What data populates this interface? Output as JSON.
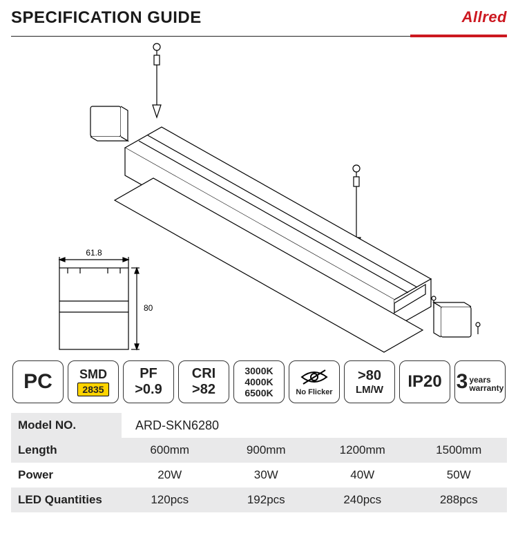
{
  "header": {
    "title": "SPECIFICATION GUIDE",
    "brand": "Allred",
    "brand_color": "#cc1820"
  },
  "diagram": {
    "profile": {
      "width_label": "61.8",
      "height_label": "80"
    }
  },
  "tiles": {
    "pc": "PC",
    "smd": {
      "top": "SMD",
      "chip": "2835"
    },
    "pf": {
      "l1": "PF",
      "l2": ">0.9"
    },
    "cri": {
      "l1": "CRI",
      "l2": ">82"
    },
    "cct": {
      "l1": "3000K",
      "l2": "4000K",
      "l3": "6500K"
    },
    "flicker": "No Flicker",
    "lm": {
      "l1": ">80",
      "l2": "LM/W"
    },
    "ip": "IP20",
    "warranty": {
      "num": "3",
      "l1": "years",
      "l2": "warranty"
    }
  },
  "table": {
    "model_label": "Model NO.",
    "model_value": "ARD-SKN6280",
    "rows": [
      {
        "label": "Length",
        "cells": [
          "600mm",
          "900mm",
          "1200mm",
          "1500mm"
        ],
        "gray": true
      },
      {
        "label": "Power",
        "cells": [
          "20W",
          "30W",
          "40W",
          "50W"
        ],
        "gray": false
      },
      {
        "label": "LED Quantities",
        "cells": [
          "120pcs",
          "192pcs",
          "240pcs",
          "288pcs"
        ],
        "gray": true
      }
    ]
  },
  "style": {
    "border_color": "#333333",
    "gray_row": "#e9e9ea",
    "text_color": "#1a1a1a"
  }
}
